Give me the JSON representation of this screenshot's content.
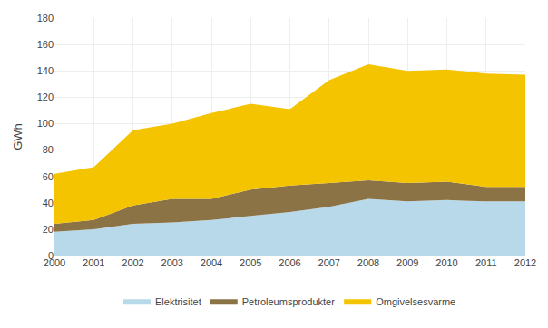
{
  "chart_data": {
    "type": "area",
    "stacked": true,
    "x": [
      2000,
      2001,
      2002,
      2003,
      2004,
      2005,
      2006,
      2007,
      2008,
      2009,
      2010,
      2011,
      2012
    ],
    "series": [
      {
        "name": "Elektrisitet",
        "color": "#b8d9ea",
        "values": [
          18,
          20,
          24,
          25,
          27,
          30,
          33,
          37,
          43,
          41,
          42,
          41,
          41
        ]
      },
      {
        "name": "Petroleumsprodukter",
        "color": "#8b7345",
        "values": [
          6,
          7,
          14,
          18,
          16,
          20,
          20,
          18,
          14,
          14,
          14,
          11,
          11
        ]
      },
      {
        "name": "Omgivelsesvarme",
        "color": "#f5c400",
        "values": [
          38,
          40,
          57,
          57,
          65,
          65,
          58,
          78,
          88,
          85,
          85,
          86,
          85
        ]
      }
    ],
    "ylabel": "GWh",
    "xlim": [
      2000,
      2012
    ],
    "xticks": [
      2000,
      2001,
      2002,
      2003,
      2004,
      2005,
      2006,
      2007,
      2008,
      2009,
      2010,
      2011,
      2012
    ],
    "ylim": [
      0,
      180
    ],
    "yticks": [
      0,
      20,
      40,
      60,
      80,
      100,
      120,
      140,
      160,
      180
    ],
    "grid": true,
    "legend": "bottom"
  }
}
